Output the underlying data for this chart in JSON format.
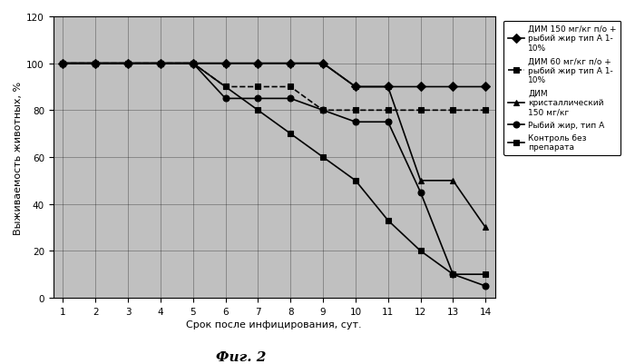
{
  "x": [
    1,
    2,
    3,
    4,
    5,
    6,
    7,
    8,
    9,
    10,
    11,
    12,
    13,
    14
  ],
  "series": [
    {
      "label": "ДИМ 150 мг/кг п/о +\nрыбий жир тип А 1-\n10%",
      "values": [
        100,
        100,
        100,
        100,
        100,
        100,
        100,
        100,
        100,
        90,
        90,
        90,
        90,
        90
      ],
      "marker": "D",
      "linestyle": "-",
      "zorder": 5
    },
    {
      "label": "ДИМ 60 мг/кг п/о +\nрыбий жир тип А 1-\n10%",
      "values": [
        100,
        100,
        100,
        100,
        100,
        90,
        90,
        90,
        80,
        80,
        80,
        80,
        80,
        80
      ],
      "marker": "s",
      "linestyle": "--",
      "zorder": 4
    },
    {
      "label": "ДИМ\nкристаллический\n150 мг/кг",
      "values": [
        100,
        100,
        100,
        100,
        100,
        100,
        100,
        100,
        100,
        90,
        90,
        50,
        50,
        30
      ],
      "marker": "^",
      "linestyle": "-",
      "zorder": 3
    },
    {
      "label": "Рыбий жир, тип А",
      "values": [
        100,
        100,
        100,
        100,
        100,
        85,
        85,
        85,
        80,
        75,
        75,
        45,
        10,
        5
      ],
      "marker": "o",
      "linestyle": "-",
      "zorder": 2
    },
    {
      "label": "Контроль без\nпрепарата",
      "values": [
        100,
        100,
        100,
        100,
        100,
        90,
        80,
        70,
        60,
        50,
        33,
        20,
        10,
        10
      ],
      "marker": "s",
      "linestyle": "-",
      "zorder": 1
    }
  ],
  "title": "Фиг. 2",
  "xlabel": "Срок после инфицирования, сут.",
  "ylabel": "Выживаемость животных, %",
  "ylim": [
    0,
    120
  ],
  "xlim_min": 0.7,
  "xlim_max": 14.3,
  "yticks": [
    0,
    20,
    40,
    60,
    80,
    100,
    120
  ],
  "xticks": [
    1,
    2,
    3,
    4,
    5,
    6,
    7,
    8,
    9,
    10,
    11,
    12,
    13,
    14
  ],
  "bg_color": "#c0c0c0",
  "fig_bg_color": "#ffffff",
  "grid_color": "#000000",
  "line_color": "#000000",
  "markersize": 5,
  "linewidth": 1.2
}
